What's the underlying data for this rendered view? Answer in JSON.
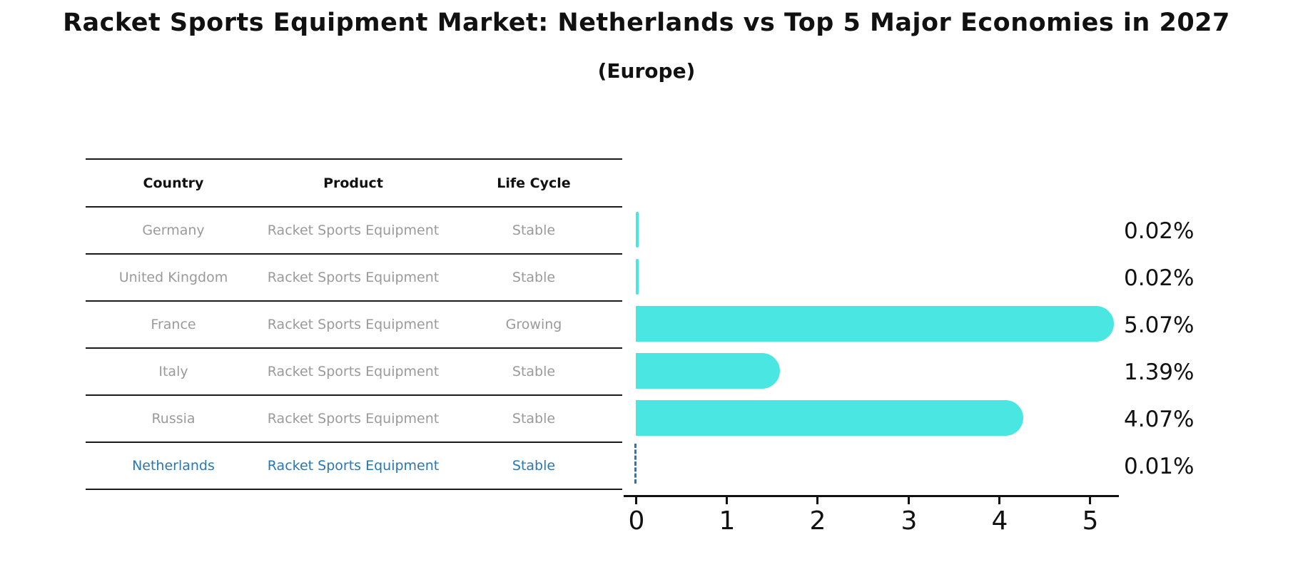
{
  "title": "Racket Sports Equipment Market: Netherlands vs Top 5 Major Economies in 2027",
  "subtitle": "(Europe)",
  "table": {
    "headers": [
      "Country",
      "Product",
      "Life Cycle"
    ],
    "rows": [
      {
        "country": "Germany",
        "product": "Racket Sports Equipment",
        "life_cycle": "Stable",
        "highlighted": false
      },
      {
        "country": "United Kingdom",
        "product": "Racket Sports Equipment",
        "life_cycle": "Stable",
        "highlighted": false
      },
      {
        "country": "France",
        "product": "Racket Sports Equipment",
        "life_cycle": "Growing",
        "highlighted": false
      },
      {
        "country": "Italy",
        "product": "Racket Sports Equipment",
        "life_cycle": "Stable",
        "highlighted": false
      },
      {
        "country": "Russia",
        "product": "Racket Sports Equipment",
        "life_cycle": "Stable",
        "highlighted": true
      }
    ],
    "highlight_row": {
      "country": "Netherlands",
      "product": "Racket Sports Equipment",
      "life_cycle": "Stable"
    }
  },
  "chart_data": {
    "type": "bar",
    "orientation": "horizontal",
    "title": "Racket Sports Equipment Market: Netherlands vs Top 5 Major Economies in 2027 (Europe)",
    "categories": [
      "Germany",
      "United Kingdom",
      "France",
      "Italy",
      "Russia",
      "Netherlands"
    ],
    "values": [
      0.02,
      0.02,
      5.07,
      1.39,
      4.07,
      0.01
    ],
    "value_labels": [
      "0.02%",
      "0.02%",
      "5.07%",
      "1.39%",
      "4.07%",
      "0.01%"
    ],
    "life_cycles": [
      "Stable",
      "Stable",
      "Growing",
      "Stable",
      "Stable",
      "Stable"
    ],
    "xticks": [
      "0",
      "1",
      "2",
      "3",
      "4",
      "5"
    ],
    "xlim": [
      0,
      5.33
    ],
    "grid": false,
    "legend": "none",
    "bar_color": "#4AE6E2",
    "highlight_color": "#2878B5",
    "highlight_index": 5,
    "highlight_bar_style": "dashed-line"
  }
}
